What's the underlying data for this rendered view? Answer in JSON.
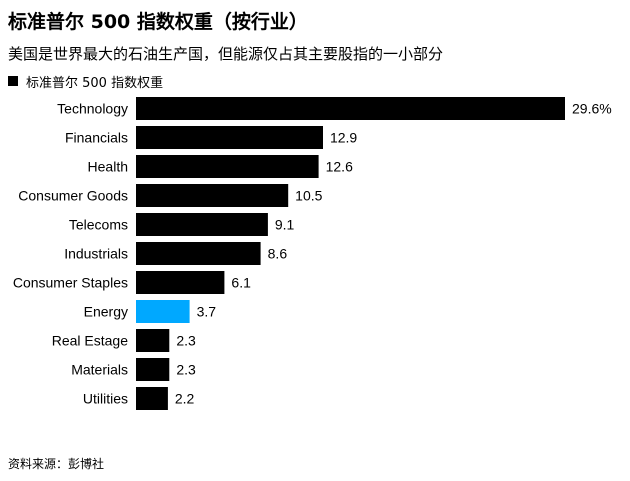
{
  "title": "标准普尔 500 指数权重（按行业）",
  "subtitle": "美国是世界最大的石油生产国，但能源仅占其主要股指的一小部分",
  "source": "资料来源：彭博社",
  "colors": {
    "bar": "#000000",
    "highlight": "#00a8ff"
  },
  "chart_data": {
    "type": "bar",
    "orientation": "horizontal",
    "title": "标准普尔 500 指数权重（按行业）",
    "subtitle": "美国是世界最大的石油生产国，但能源仅占其主要股指的一小部分",
    "legend": {
      "position": "top-left",
      "entries": [
        "标准普尔 500 指数权重"
      ]
    },
    "series": [
      {
        "name": "标准普尔 500 指数权重",
        "values": [
          29.6,
          12.9,
          12.6,
          10.5,
          9.1,
          8.6,
          6.1,
          3.7,
          2.3,
          2.3,
          2.2
        ]
      }
    ],
    "categories": [
      "Technology",
      "Financials",
      "Health",
      "Consumer Goods",
      "Telecoms",
      "Industrials",
      "Consumer Staples",
      "Energy",
      "Real Estage",
      "Materials",
      "Utilities"
    ],
    "value_labels": [
      "29.6%",
      "12.9",
      "12.6",
      "10.5",
      "9.1",
      "8.6",
      "6.1",
      "3.7",
      "2.3",
      "2.3",
      "2.2"
    ],
    "highlight_category": "Energy",
    "xlim": [
      0,
      29.6
    ],
    "grid": false,
    "axes_visible": false
  }
}
